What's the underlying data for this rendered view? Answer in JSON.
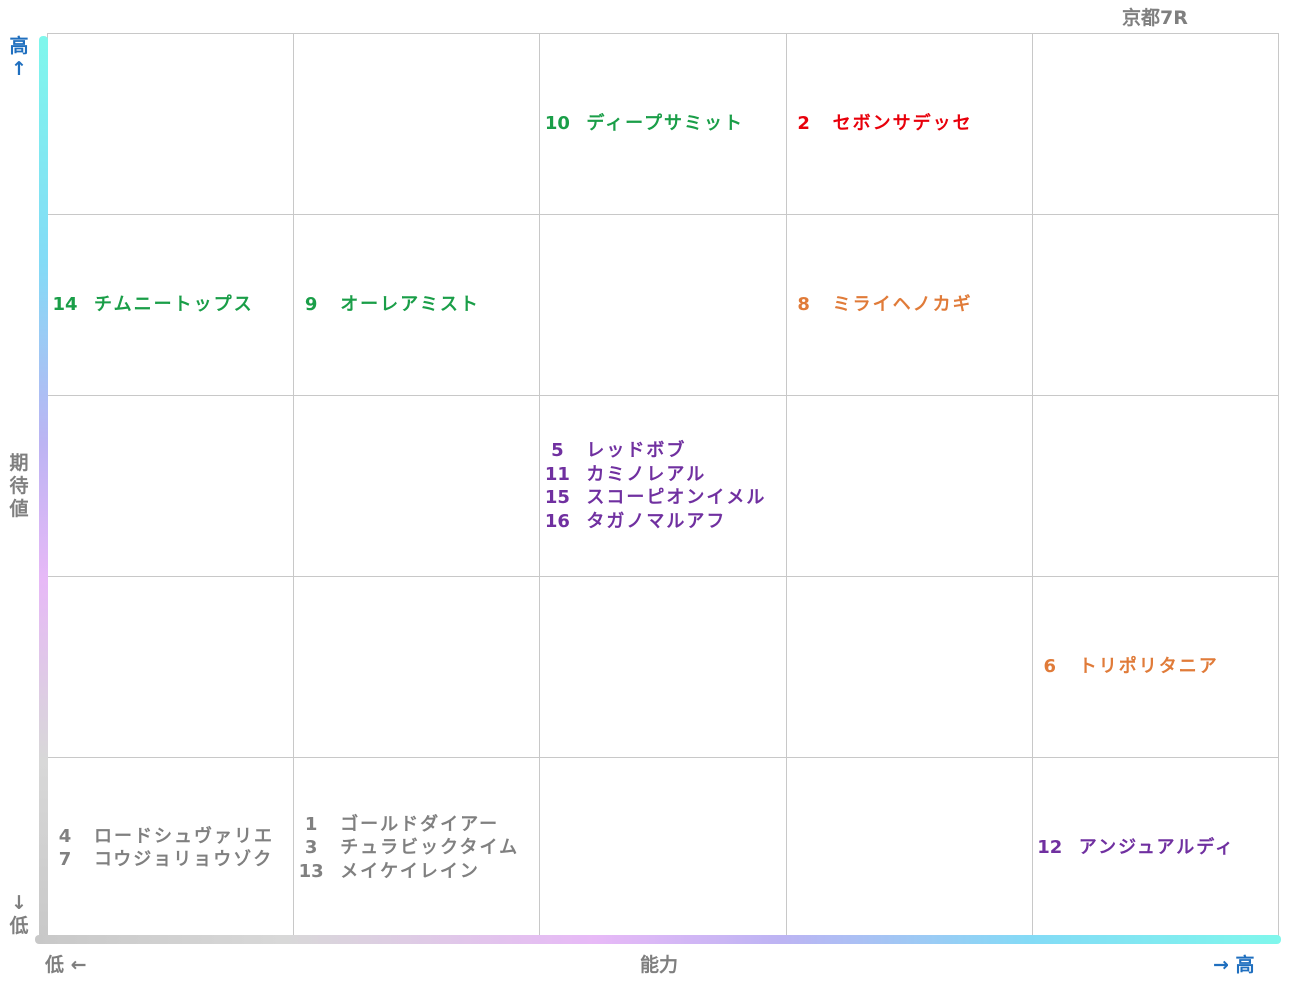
{
  "title": "京都7R",
  "y_axis": {
    "high": "高↑",
    "label": "期待値",
    "low": "↓低"
  },
  "x_axis": {
    "low": "低 ←",
    "label": "能力",
    "high": "→ 高"
  },
  "grid": {
    "rows": [
      [
        [],
        [],
        [
          {
            "number": 10,
            "name": "ディープサミット",
            "color": "#1a9e48"
          }
        ],
        [
          {
            "number": 2,
            "name": "セボンサデッセ",
            "color": "#e8000b"
          }
        ],
        []
      ],
      [
        [
          {
            "number": 14,
            "name": "チムニートップス",
            "color": "#1a9e48"
          }
        ],
        [
          {
            "number": 9,
            "name": "オーレアミスト",
            "color": "#1a9e48"
          }
        ],
        [],
        [
          {
            "number": 8,
            "name": "ミライヘノカギ",
            "color": "#e07b39"
          }
        ],
        []
      ],
      [
        [],
        [],
        [
          {
            "number": 5,
            "name": "レッドボブ",
            "color": "#7030a0"
          },
          {
            "number": 11,
            "name": "カミノレアル",
            "color": "#7030a0"
          },
          {
            "number": 15,
            "name": "スコーピオンイメル",
            "color": "#7030a0"
          },
          {
            "number": 16,
            "name": "タガノマルアフ",
            "color": "#7030a0"
          }
        ],
        [],
        []
      ],
      [
        [],
        [],
        [],
        [],
        [
          {
            "number": 6,
            "name": "トリポリタニア",
            "color": "#e07b39"
          }
        ]
      ],
      [
        [
          {
            "number": 4,
            "name": "ロードシュヴァリエ",
            "color": "#808080"
          },
          {
            "number": 7,
            "name": "コウジョリョウゾク",
            "color": "#808080"
          }
        ],
        [
          {
            "number": 1,
            "name": "ゴールドダイアー",
            "color": "#808080"
          },
          {
            "number": 3,
            "name": "チュラビックタイム",
            "color": "#808080"
          },
          {
            "number": 13,
            "name": "メイケイレイン",
            "color": "#808080"
          }
        ],
        [],
        [],
        [
          {
            "number": 12,
            "name": "アンジュアルディ",
            "color": "#7030a0"
          }
        ]
      ]
    ]
  }
}
